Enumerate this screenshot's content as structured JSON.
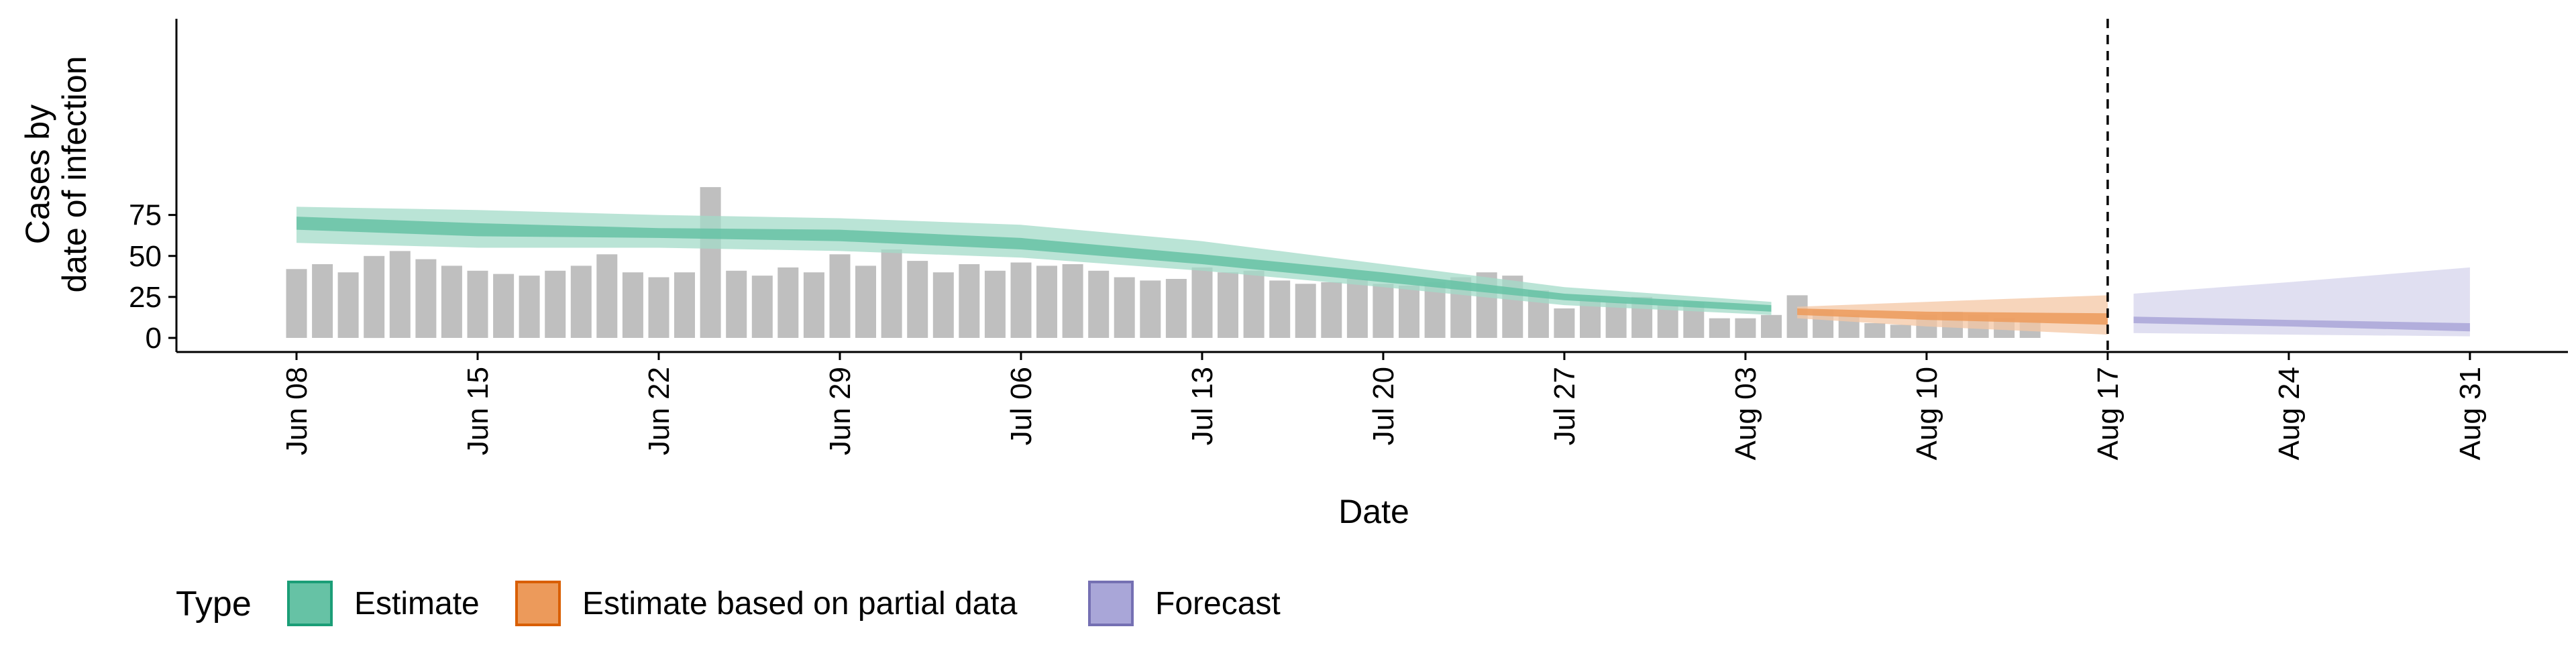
{
  "chart_data": {
    "type": "bar",
    "xlabel": "Date",
    "ylabel_lines": [
      "Cases by",
      "date of infection"
    ],
    "ylim": [
      0,
      98
    ],
    "yticks": [
      0,
      25,
      50,
      75
    ],
    "x_tick_labels": [
      "Jun 08",
      "Jun 15",
      "Jun 22",
      "Jun 29",
      "Jul 06",
      "Jul 13",
      "Jul 20",
      "Jul 27",
      "Aug 03",
      "Aug 10",
      "Aug 17",
      "Aug 24",
      "Aug 31"
    ],
    "x_start": "Jun 08",
    "x_end": "Aug 31",
    "report_date": "Aug 17",
    "grid": false,
    "legend_position": "bottom-left",
    "legend": {
      "title": "Type",
      "entries": [
        {
          "label": "Estimate",
          "fill": "#66c2a5",
          "stroke": "#1b9e77"
        },
        {
          "label": "Estimate based on partial data",
          "fill": "#ec9a5b",
          "stroke": "#d95f02"
        },
        {
          "label": "Forecast",
          "fill": "#a9a6d8",
          "stroke": "#7570b3"
        }
      ]
    },
    "bar_color": "#bfbfbf",
    "observed_cases": [
      42,
      45,
      40,
      50,
      53,
      48,
      44,
      41,
      39,
      38,
      41,
      44,
      51,
      40,
      37,
      40,
      92,
      41,
      38,
      43,
      40,
      51,
      44,
      54,
      47,
      40,
      45,
      41,
      46,
      44,
      45,
      41,
      37,
      35,
      36,
      43,
      40,
      41,
      35,
      33,
      34,
      36,
      33,
      32,
      34,
      37,
      40,
      38,
      29,
      18,
      24,
      22,
      25,
      20,
      22,
      12,
      12,
      14,
      26,
      17,
      14,
      9,
      8,
      14,
      16,
      14,
      12,
      11
    ],
    "series": [
      {
        "name": "Estimate",
        "color_inner": "#66c2a5",
        "color_outer": "#a3dbc8",
        "dates": [
          "Jun 08",
          "Jun 15",
          "Jun 22",
          "Jun 29",
          "Jul 06",
          "Jul 13",
          "Jul 20",
          "Jul 27",
          "Aug 04"
        ],
        "median": [
          70,
          66,
          64,
          63,
          58,
          48,
          37,
          25,
          18
        ],
        "lower_50": [
          66,
          62,
          61,
          59,
          54,
          45,
          34,
          23,
          16
        ],
        "upper_50": [
          74,
          70,
          67,
          66,
          61,
          51,
          40,
          27,
          20
        ],
        "lower_90": [
          58,
          55,
          55,
          53,
          49,
          41,
          31,
          20,
          14
        ],
        "upper_90": [
          80,
          78,
          75,
          73,
          69,
          59,
          45,
          31,
          22
        ]
      },
      {
        "name": "Estimate based on partial data",
        "color_inner": "#ec9a5b",
        "color_outer": "#f4c7a4",
        "dates": [
          "Aug 05",
          "Aug 10",
          "Aug 17"
        ],
        "median": [
          16,
          14,
          12
        ],
        "lower_50": [
          14,
          11,
          8
        ],
        "upper_50": [
          18,
          16,
          15
        ],
        "lower_90": [
          12,
          7,
          2
        ],
        "upper_90": [
          19,
          22,
          26
        ]
      },
      {
        "name": "Forecast",
        "color_inner": "#a9a6d8",
        "color_outer": "#d6d4ec",
        "dates": [
          "Aug 18",
          "Aug 24",
          "Aug 31"
        ],
        "median": [
          11,
          9,
          7
        ],
        "lower_50": [
          9,
          7,
          4
        ],
        "upper_50": [
          13,
          11,
          9
        ],
        "lower_90": [
          3,
          2,
          1
        ],
        "upper_90": [
          27,
          34,
          43
        ]
      }
    ]
  }
}
